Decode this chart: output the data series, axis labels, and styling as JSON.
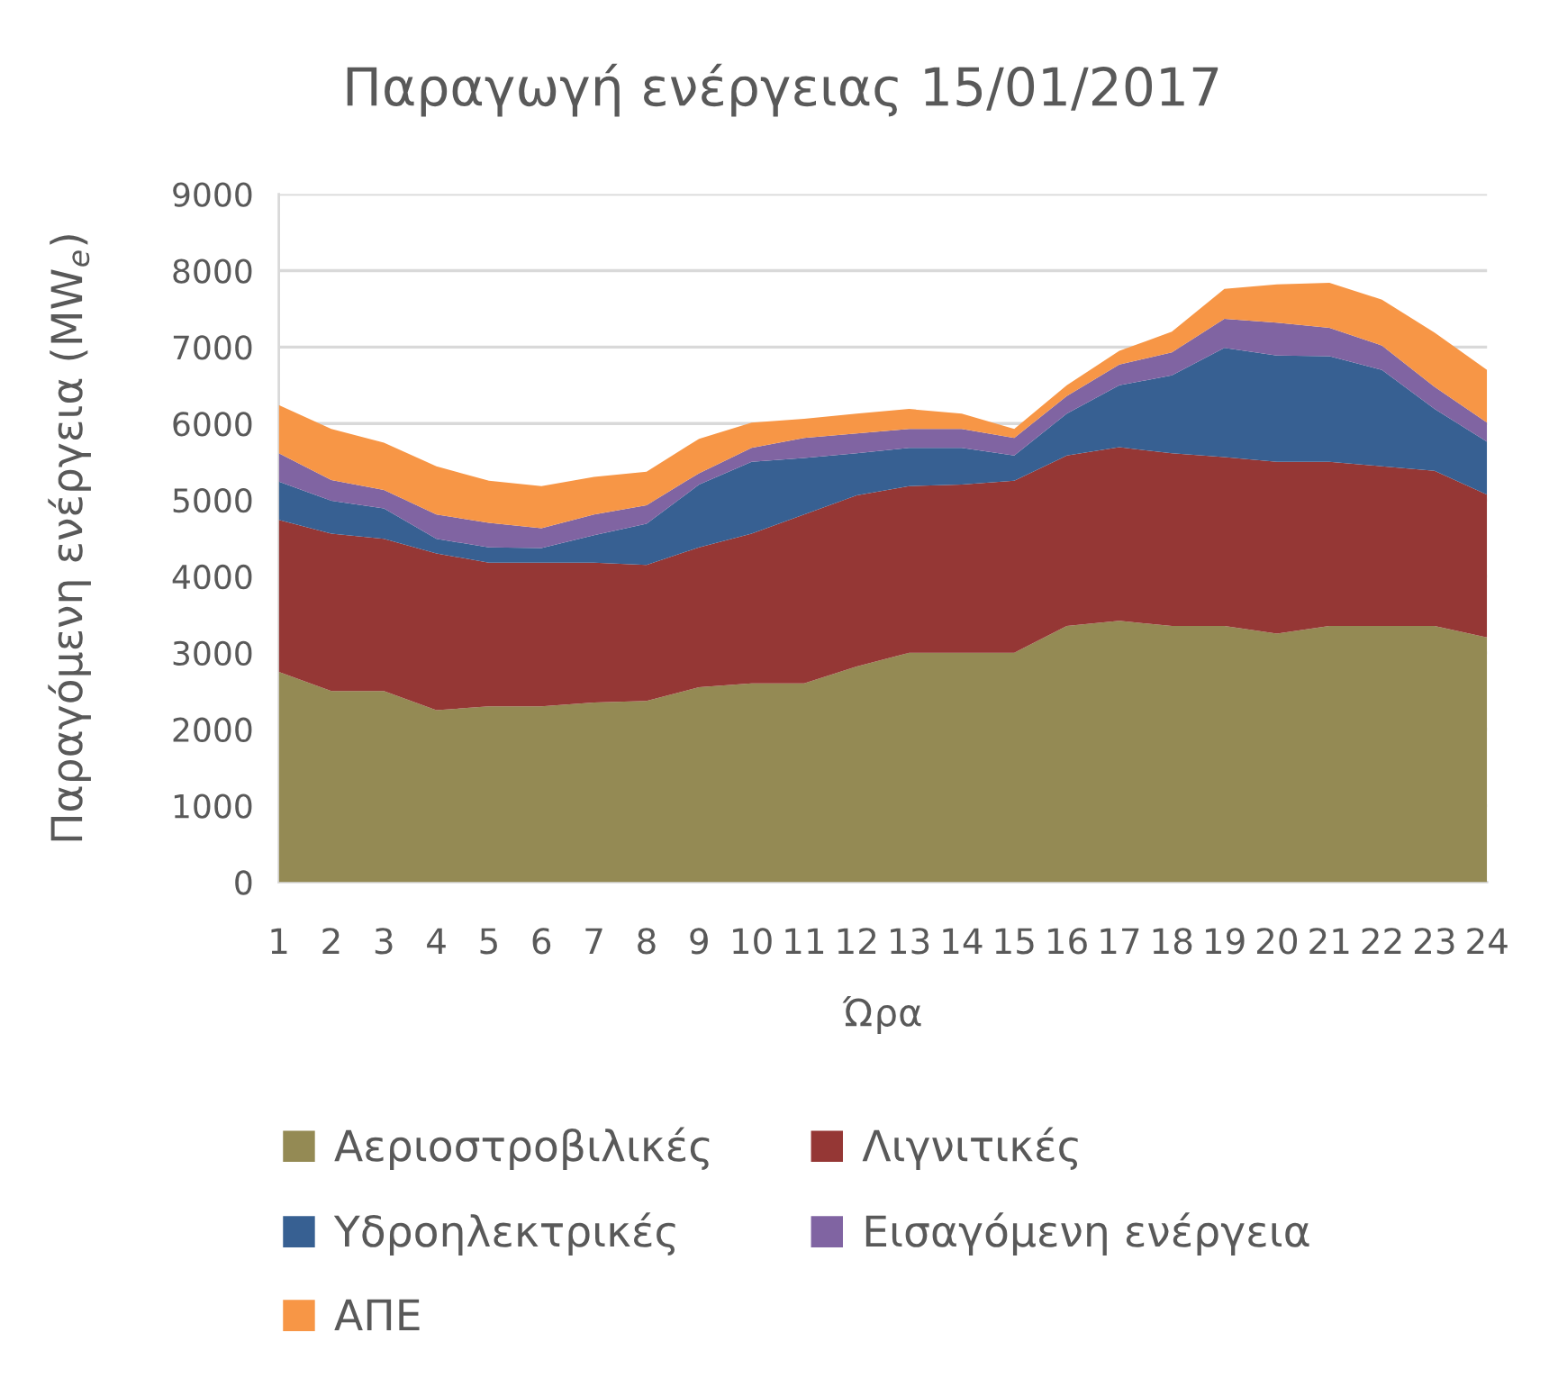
{
  "chart_data": {
    "type": "area",
    "stacked": true,
    "title": "Παραγωγή ενέργειας 15/01/2017",
    "xlabel": "Ώρα",
    "ylabel": "Παραγόμενη ενέργεια (MW$_{e}$)",
    "x": [
      1,
      2,
      3,
      4,
      5,
      6,
      7,
      8,
      9,
      10,
      11,
      12,
      13,
      14,
      15,
      16,
      17,
      18,
      19,
      20,
      21,
      22,
      23,
      24
    ],
    "xlim": [
      1,
      24
    ],
    "xticks": [
      1,
      2,
      3,
      4,
      5,
      6,
      7,
      8,
      9,
      10,
      11,
      12,
      13,
      14,
      15,
      16,
      17,
      18,
      19,
      20,
      21,
      22,
      23,
      24
    ],
    "ylim": [
      0,
      9000
    ],
    "yticks": [
      0,
      1000,
      2000,
      3000,
      4000,
      5000,
      6000,
      7000,
      8000,
      9000
    ],
    "grid": "y",
    "legend": "bottom",
    "series": [
      {
        "name": "Αεριοστροβιλικές",
        "color": "#948a54",
        "values": [
          2750,
          2500,
          2500,
          2250,
          2300,
          2300,
          2350,
          2370,
          2550,
          2600,
          2600,
          2820,
          3000,
          3000,
          3000,
          3350,
          3420,
          3350,
          3350,
          3250,
          3350,
          3350,
          3350,
          3200
        ]
      },
      {
        "name": "Λιγνιτικές",
        "color": "#953735",
        "values": [
          1990,
          2060,
          1990,
          2050,
          1880,
          1880,
          1830,
          1780,
          1830,
          1960,
          2210,
          2240,
          2180,
          2200,
          2250,
          2230,
          2270,
          2260,
          2210,
          2250,
          2150,
          2090,
          2030,
          1870
        ]
      },
      {
        "name": "Υδροηλεκτρικές",
        "color": "#376092",
        "values": [
          500,
          430,
          400,
          190,
          200,
          190,
          360,
          540,
          820,
          940,
          740,
          550,
          500,
          480,
          330,
          550,
          810,
          1020,
          1430,
          1390,
          1380,
          1260,
          810,
          690
        ]
      },
      {
        "name": "Εισαγόμενη ενέργεια",
        "color": "#8064a2",
        "values": [
          370,
          270,
          240,
          320,
          320,
          260,
          270,
          240,
          150,
          180,
          260,
          260,
          250,
          250,
          230,
          230,
          270,
          300,
          380,
          430,
          370,
          320,
          290,
          250
        ]
      },
      {
        "name": "ΑΠΕ",
        "color": "#f79646",
        "values": [
          630,
          670,
          620,
          630,
          550,
          550,
          490,
          440,
          450,
          330,
          250,
          260,
          260,
          200,
          120,
          140,
          180,
          270,
          390,
          500,
          590,
          600,
          710,
          690
        ]
      }
    ]
  }
}
